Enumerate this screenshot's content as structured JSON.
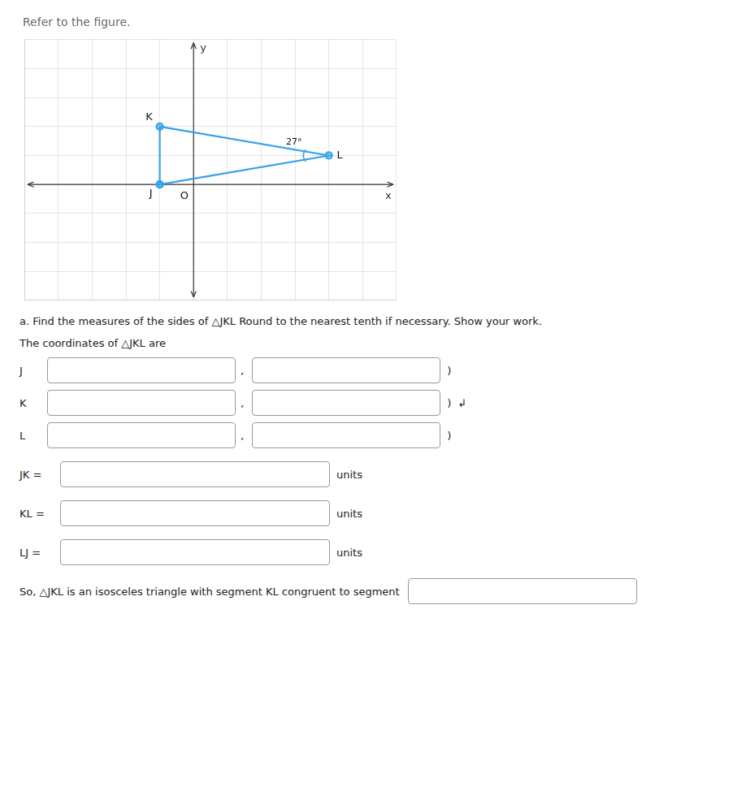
{
  "chart_data": {
    "type": "line",
    "title": "Refer to the figure.",
    "x": [
      -1,
      -1,
      4,
      -1
    ],
    "values": [
      0,
      2,
      1,
      0
    ],
    "xlim": [
      -5,
      6
    ],
    "ylim": [
      -4,
      5
    ],
    "xticks": [
      -5,
      -4,
      -3,
      -2,
      -1,
      0,
      1,
      2,
      3,
      4,
      5,
      6
    ],
    "yticks": [
      -4,
      -3,
      -2,
      -1,
      0,
      1,
      2,
      3,
      4,
      5
    ],
    "grid": true,
    "tick_labels": false,
    "x_label": "x",
    "y_label": "y",
    "annotations": [
      {
        "text": "J",
        "x": -1,
        "y": 0
      },
      {
        "text": "K",
        "x": -1,
        "y": 2
      },
      {
        "text": "L",
        "x": 4,
        "y": 1
      },
      {
        "text": "O",
        "x": 0,
        "y": 0
      }
    ],
    "angle_label": {
      "text": "27°",
      "x": 4,
      "y": 1
    },
    "form": {
      "intro": "a. Find the measures of the sides of △JKL  Round to the nearest tenth if necessary. Show your work.",
      "coords_heading": "The coordinates of △JKL are",
      "coordinate_rows": [
        {
          "label": "J",
          "separator": ",",
          "close": ")"
        },
        {
          "label": "K",
          "separator": ",",
          "close": ")",
          "icon": "↲"
        },
        {
          "label": "L",
          "separator": ",",
          "close": ")"
        }
      ],
      "length_rows": [
        {
          "label": "JK =",
          "unit": "units"
        },
        {
          "label": "KL =",
          "unit": "units"
        },
        {
          "label": "LJ =",
          "unit": "units"
        }
      ],
      "conclusion": "So, △JKL is an isosceles triangle with segment KL congruent to segment"
    }
  }
}
